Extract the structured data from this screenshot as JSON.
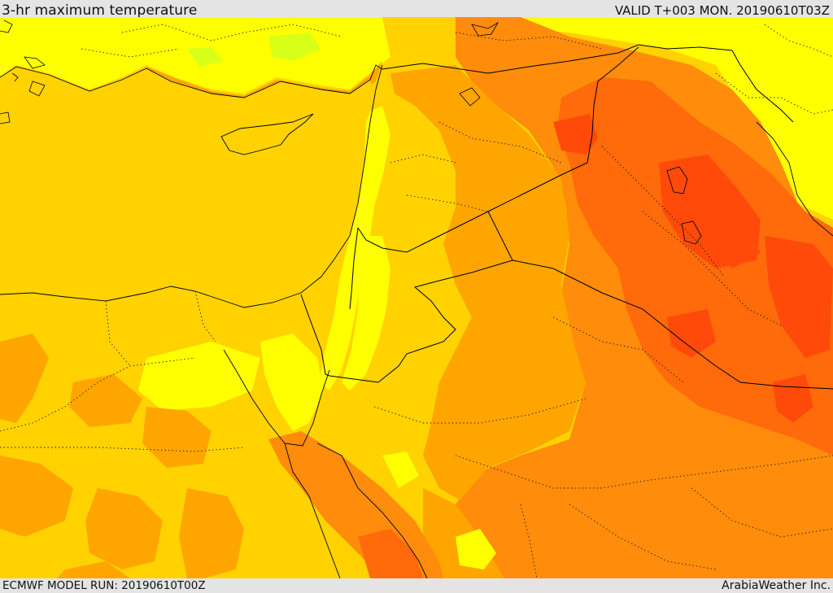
{
  "header": {
    "title": "3-hr maximum temperature",
    "valid_time": "VALID T+003 MON. 20190610T03Z"
  },
  "footer": {
    "model_run": "ECMWF MODEL RUN: 20190610T00Z",
    "credit": "ArabiaWeather Inc."
  },
  "map": {
    "colors": {
      "hot_red": "#ff4a0a",
      "red_orange": "#ff6a0a",
      "orange": "#ff8c0a",
      "amber": "#ffa500",
      "gold": "#ffd200",
      "yellow": "#ffff00",
      "yellow_green": "#d8ff18",
      "green": "#9cf528",
      "border": "#000000"
    }
  }
}
